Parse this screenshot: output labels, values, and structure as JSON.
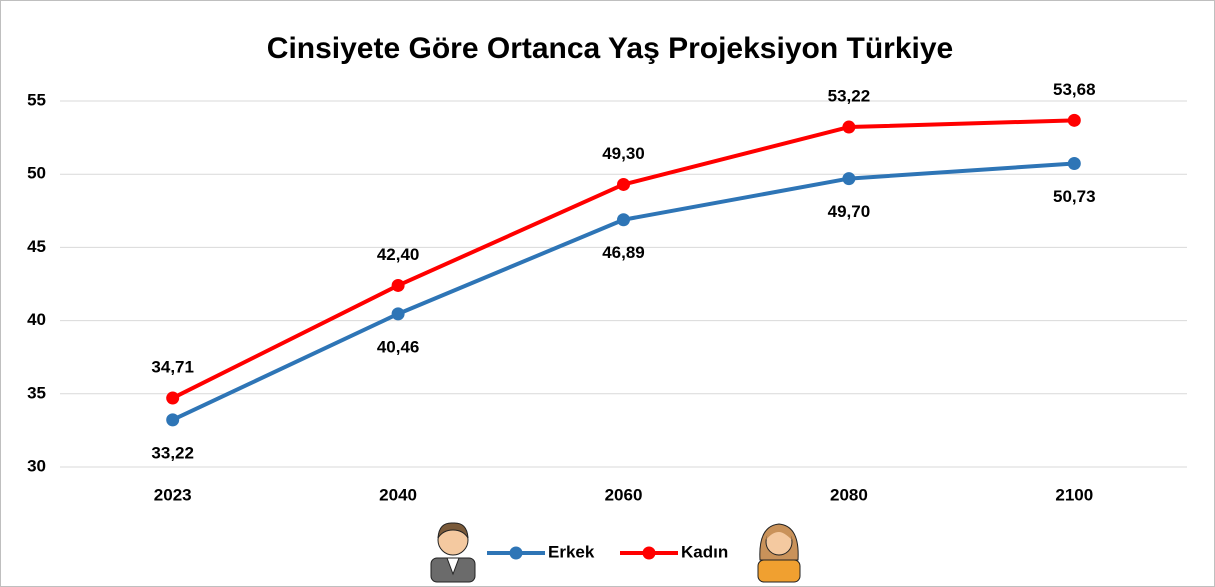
{
  "chart_data": {
    "type": "line",
    "title": "Cinsiyete Göre Ortanca Yaş Projeksiyon Türkiye",
    "categories": [
      "2023",
      "2040",
      "2060",
      "2080",
      "2100"
    ],
    "series": [
      {
        "name": "Erkek",
        "color": "#2e75b6",
        "values": [
          33.22,
          40.46,
          46.89,
          49.7,
          50.73
        ],
        "value_labels": [
          "33,22",
          "40,46",
          "46,89",
          "49,70",
          "50,73"
        ]
      },
      {
        "name": "Kadın",
        "color": "#ff0000",
        "values": [
          34.71,
          42.4,
          49.3,
          53.22,
          53.68
        ],
        "value_labels": [
          "34,71",
          "42,40",
          "49,30",
          "53,22",
          "53,68"
        ]
      }
    ],
    "ylim": [
      30,
      55
    ],
    "yticks": [
      30,
      35,
      40,
      45,
      50,
      55
    ],
    "grid": true,
    "legend": "bottom"
  }
}
